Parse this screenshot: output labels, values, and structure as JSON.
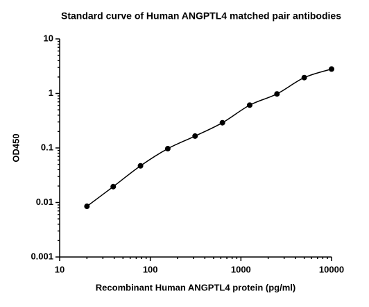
{
  "chart_data": {
    "type": "scatter",
    "title": "Standard curve of Human ANGPTL4 matched pair antibodies",
    "x_label": "Recombinant Human ANGPTL4 protein (pg/ml)",
    "y_label": "OD450",
    "x": [
      20,
      39,
      78,
      156,
      312,
      625,
      1250,
      2500,
      5000,
      10000
    ],
    "values": [
      0.0085,
      0.0195,
      0.047,
      0.097,
      0.165,
      0.29,
      0.61,
      0.98,
      1.95,
      2.8
    ],
    "color": "#000000",
    "line": true,
    "x_log": true,
    "y_log": true,
    "xlim": [
      10,
      10000
    ],
    "xticks": [
      10,
      100,
      1000,
      10000
    ],
    "ylim": [
      0.001,
      10
    ],
    "yticks": [
      0.001,
      0.01,
      0.1,
      1,
      10
    ]
  }
}
